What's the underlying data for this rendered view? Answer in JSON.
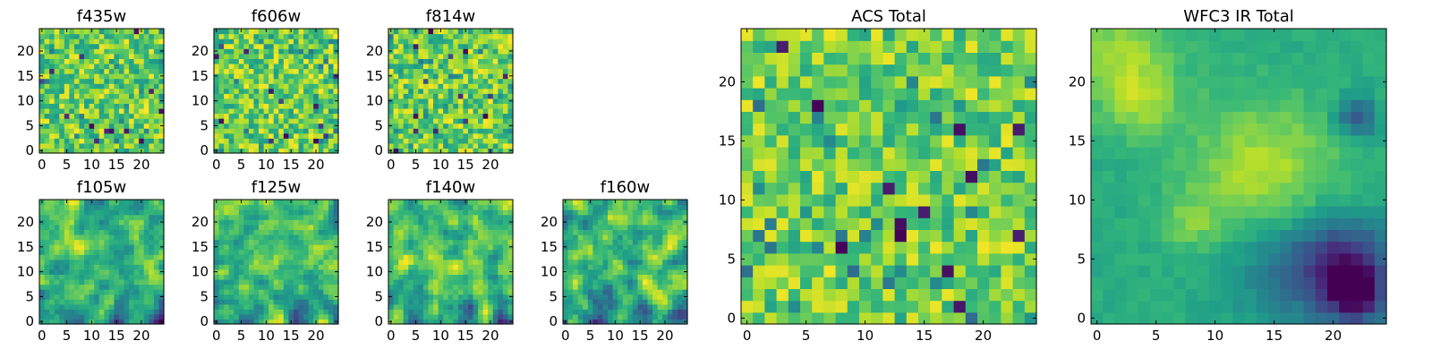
{
  "chart_data": {
    "type": "heatmap",
    "colormap": "viridis",
    "grid_size": 25,
    "panels": [
      {
        "id": "f435w",
        "title": "f435w",
        "xticks": [
          0,
          5,
          10,
          15,
          20
        ],
        "yticks": [
          0,
          5,
          10,
          15,
          20
        ],
        "xlim": [
          0,
          25
        ],
        "ylim": [
          0,
          25
        ],
        "style": "noise",
        "seed": 11
      },
      {
        "id": "f606w",
        "title": "f606w",
        "xticks": [
          0,
          5,
          10,
          15,
          20
        ],
        "yticks": [
          0,
          5,
          10,
          15,
          20
        ],
        "xlim": [
          0,
          25
        ],
        "ylim": [
          0,
          25
        ],
        "style": "noise",
        "seed": 23
      },
      {
        "id": "f814w",
        "title": "f814w",
        "xticks": [
          0,
          5,
          10,
          15,
          20
        ],
        "yticks": [
          0,
          5,
          10,
          15,
          20
        ],
        "xlim": [
          0,
          25
        ],
        "ylim": [
          0,
          25
        ],
        "style": "noise",
        "seed": 37
      },
      {
        "id": "f105w",
        "title": "f105w",
        "xticks": [
          0,
          5,
          10,
          15,
          20
        ],
        "yticks": [
          0,
          5,
          10,
          15,
          20
        ],
        "xlim": [
          0,
          25
        ],
        "ylim": [
          0,
          25
        ],
        "style": "smooth",
        "seed": 41
      },
      {
        "id": "f125w",
        "title": "f125w",
        "xticks": [
          0,
          5,
          10,
          15,
          20
        ],
        "yticks": [
          0,
          5,
          10,
          15,
          20
        ],
        "xlim": [
          0,
          25
        ],
        "ylim": [
          0,
          25
        ],
        "style": "smooth",
        "seed": 53
      },
      {
        "id": "f140w",
        "title": "f140w",
        "xticks": [
          0,
          5,
          10,
          15,
          20
        ],
        "yticks": [
          0,
          5,
          10,
          15,
          20
        ],
        "xlim": [
          0,
          25
        ],
        "ylim": [
          0,
          25
        ],
        "style": "smooth",
        "seed": 67
      },
      {
        "id": "f160w",
        "title": "f160w",
        "xticks": [
          0,
          5,
          10,
          15,
          20
        ],
        "yticks": [
          0,
          5,
          10,
          15,
          20
        ],
        "xlim": [
          0,
          25
        ],
        "ylim": [
          0,
          25
        ],
        "style": "smooth",
        "seed": 79
      },
      {
        "id": "acs-total",
        "title": "ACS Total",
        "xticks": [
          0,
          5,
          10,
          15,
          20
        ],
        "yticks": [
          0,
          5,
          10,
          15,
          20
        ],
        "xlim": [
          0,
          25
        ],
        "ylim": [
          0,
          25
        ],
        "style": "noise-light",
        "seed": 97
      },
      {
        "id": "wfc3-ir-total",
        "title": "WFC3 IR Total",
        "xticks": [
          0,
          5,
          10,
          15,
          20
        ],
        "yticks": [
          0,
          5,
          10,
          15,
          20
        ],
        "xlim": [
          0,
          25
        ],
        "ylim": [
          0,
          25
        ],
        "style": "ir-total",
        "seed": 101
      }
    ]
  }
}
